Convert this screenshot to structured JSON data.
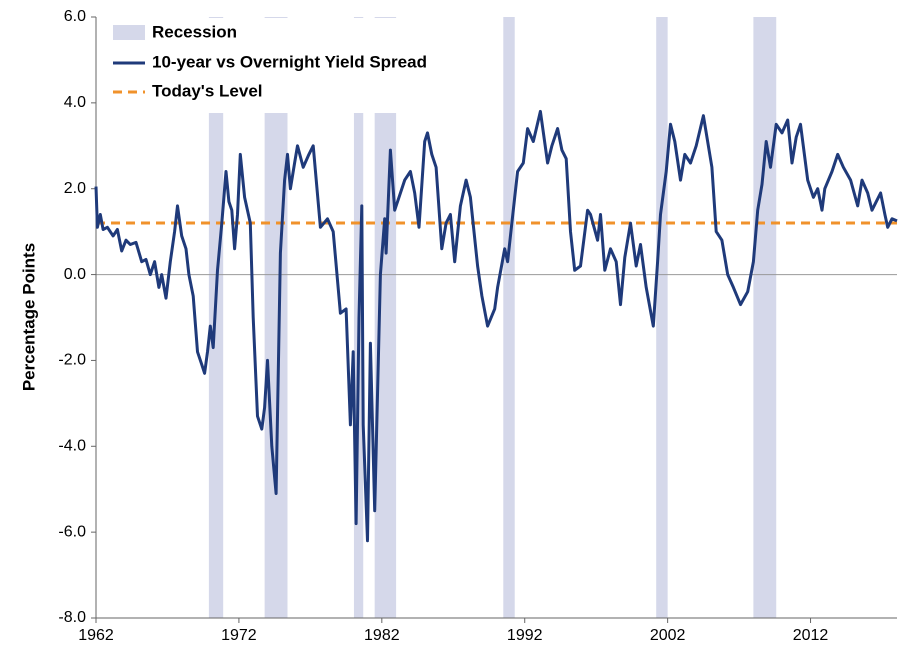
{
  "chart_data": {
    "type": "line",
    "y_label": "Percentage Points",
    "xlim": [
      1962,
      2018.05
    ],
    "xticks": [
      1962,
      1972,
      1982,
      1992,
      2002,
      2012
    ],
    "ylim": [
      -8,
      6
    ],
    "yticks": [
      {
        "value": -8,
        "label": "-8.0"
      },
      {
        "value": -6,
        "label": "-6.0"
      },
      {
        "value": -4,
        "label": "-4.0"
      },
      {
        "value": -2,
        "label": "-2.0"
      },
      {
        "value": 0,
        "label": "0.0"
      },
      {
        "value": 2,
        "label": "2.0"
      },
      {
        "value": 4,
        "label": "4.0"
      },
      {
        "value": 6,
        "label": "6.0"
      }
    ],
    "recessions": {
      "name": "Recession",
      "color": "#d5d8ea",
      "ranges": [
        [
          1969.9,
          1970.9
        ],
        [
          1973.8,
          1975.4
        ],
        [
          1980.05,
          1980.7
        ],
        [
          1981.5,
          1983.0
        ],
        [
          1990.5,
          1991.3
        ],
        [
          2001.2,
          2002.0
        ],
        [
          2008.0,
          2009.6
        ]
      ]
    },
    "series": [
      {
        "name": "10-year vs Overnight Yield Spread",
        "color": "#1f3a7a",
        "x": [
          1962.0,
          1962.1,
          1962.3,
          1962.5,
          1962.8,
          1963.2,
          1963.5,
          1963.8,
          1964.1,
          1964.4,
          1964.8,
          1965.2,
          1965.5,
          1965.8,
          1966.1,
          1966.4,
          1966.6,
          1966.9,
          1967.2,
          1967.5,
          1967.7,
          1968.0,
          1968.3,
          1968.5,
          1968.8,
          1969.1,
          1969.4,
          1969.6,
          1969.8,
          1970.0,
          1970.2,
          1970.5,
          1970.8,
          1971.1,
          1971.3,
          1971.5,
          1971.7,
          1971.9,
          1972.1,
          1972.4,
          1972.8,
          1973.0,
          1973.3,
          1973.6,
          1973.8,
          1974.0,
          1974.3,
          1974.6,
          1974.9,
          1975.2,
          1975.4,
          1975.6,
          1975.9,
          1976.1,
          1976.5,
          1976.9,
          1977.2,
          1977.7,
          1978.2,
          1978.6,
          1979.1,
          1979.5,
          1979.8,
          1980.0,
          1980.2,
          1980.4,
          1980.6,
          1980.7,
          1981.0,
          1981.2,
          1981.5,
          1981.9,
          1982.2,
          1982.3,
          1982.6,
          1982.9,
          1983.2,
          1983.6,
          1984.0,
          1984.3,
          1984.6,
          1985.0,
          1985.2,
          1985.5,
          1985.8,
          1986.2,
          1986.5,
          1986.8,
          1987.1,
          1987.5,
          1987.9,
          1988.2,
          1988.7,
          1989.0,
          1989.4,
          1989.9,
          1990.1,
          1990.6,
          1990.8,
          1991.3,
          1991.5,
          1991.9,
          1992.2,
          1992.6,
          1993.1,
          1993.6,
          1993.9,
          1994.3,
          1994.6,
          1994.9,
          1995.2,
          1995.5,
          1995.9,
          1996.4,
          1996.6,
          1997.1,
          1997.3,
          1997.6,
          1998.0,
          1998.4,
          1998.7,
          1999.0,
          1999.4,
          1999.8,
          2000.1,
          2000.5,
          2001.0,
          2001.3,
          2001.5,
          2001.9,
          2002.2,
          2002.5,
          2002.9,
          2003.2,
          2003.6,
          2004.0,
          2004.5,
          2005.1,
          2005.4,
          2005.8,
          2006.2,
          2006.6,
          2007.1,
          2007.6,
          2008.0,
          2008.3,
          2008.6,
          2008.9,
          2009.2,
          2009.6,
          2010.0,
          2010.4,
          2010.7,
          2011.0,
          2011.3,
          2011.8,
          2012.2,
          2012.5,
          2012.8,
          2013.0,
          2013.5,
          2013.9,
          2014.3,
          2014.8,
          2015.3,
          2015.6,
          2016.0,
          2016.3,
          2016.6,
          2016.9,
          2017.2,
          2017.4,
          2017.7,
          2018.05
        ],
        "values": [
          2.05,
          1.1,
          1.4,
          1.05,
          1.1,
          0.9,
          1.05,
          0.55,
          0.8,
          0.7,
          0.75,
          0.3,
          0.35,
          0.0,
          0.3,
          -0.3,
          0.0,
          -0.55,
          0.3,
          1.0,
          1.6,
          0.9,
          0.6,
          0.0,
          -0.5,
          -1.8,
          -2.1,
          -2.3,
          -1.8,
          -1.2,
          -1.7,
          0.1,
          1.2,
          2.4,
          1.7,
          1.5,
          0.6,
          1.4,
          2.8,
          1.8,
          1.2,
          -1.0,
          -3.3,
          -3.6,
          -3.1,
          -2.0,
          -4.0,
          -5.1,
          0.5,
          2.2,
          2.8,
          2.0,
          2.6,
          3.0,
          2.5,
          2.8,
          3.0,
          1.1,
          1.3,
          1.0,
          -0.9,
          -0.8,
          -3.5,
          -1.8,
          -5.8,
          -1.0,
          1.6,
          -3.5,
          -6.2,
          -1.6,
          -5.5,
          0.0,
          1.3,
          0.5,
          2.9,
          1.5,
          1.8,
          2.2,
          2.4,
          1.9,
          1.1,
          3.1,
          3.3,
          2.8,
          2.5,
          0.6,
          1.2,
          1.4,
          0.3,
          1.6,
          2.2,
          1.8,
          0.2,
          -0.5,
          -1.2,
          -0.8,
          -0.3,
          0.6,
          0.3,
          1.8,
          2.4,
          2.6,
          3.4,
          3.1,
          3.8,
          2.6,
          3.0,
          3.4,
          2.9,
          2.7,
          1.0,
          0.1,
          0.2,
          1.5,
          1.4,
          0.8,
          1.4,
          0.1,
          0.6,
          0.3,
          -0.7,
          0.4,
          1.2,
          0.2,
          0.7,
          -0.3,
          -1.2,
          0.3,
          1.4,
          2.4,
          3.5,
          3.1,
          2.2,
          2.8,
          2.6,
          3.0,
          3.7,
          2.5,
          1.0,
          0.8,
          0.0,
          -0.3,
          -0.7,
          -0.4,
          0.3,
          1.5,
          2.1,
          3.1,
          2.5,
          3.5,
          3.3,
          3.6,
          2.6,
          3.2,
          3.5,
          2.2,
          1.8,
          2.0,
          1.5,
          2.0,
          2.4,
          2.8,
          2.5,
          2.2,
          1.6,
          2.2,
          1.9,
          1.5,
          1.7,
          1.9,
          1.4,
          1.1,
          1.3,
          1.25
        ]
      }
    ],
    "reference": {
      "name": "Today's Level",
      "color": "#f0922b",
      "value": 1.2
    }
  }
}
